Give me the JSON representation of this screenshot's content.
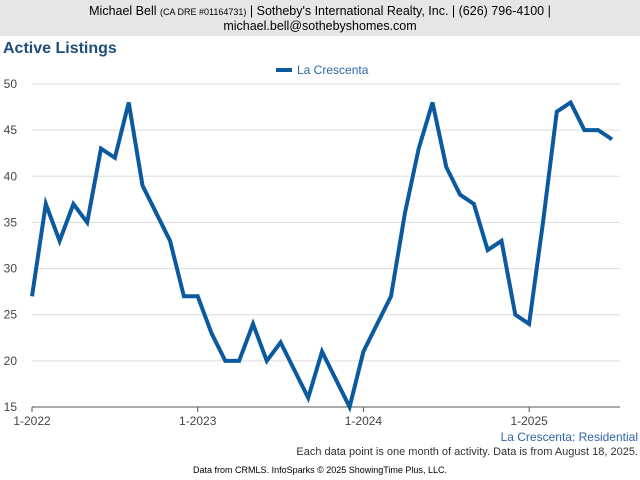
{
  "header": {
    "name": "Michael Bell",
    "license": "(CA DRE #01164731)",
    "company": "| Sotheby's International Realty, Inc. | (626) 796-4100 |",
    "email": "michael.bell@sothebyshomes.com"
  },
  "footer": {
    "series_label": "La Crescenta: Residential",
    "note": "Each data point is one month of activity. Data is from August 18, 2025.",
    "source": "Data from CRMLS. InfoSparks © 2025 ShowingTime Plus, LLC."
  },
  "chart_data": {
    "type": "line",
    "title": "Active Listings",
    "xlabel": "",
    "ylabel": "",
    "ylim": [
      15,
      50
    ],
    "yticks": [
      15,
      20,
      25,
      30,
      35,
      40,
      45,
      50
    ],
    "xticks": [
      "1-2022",
      "1-2023",
      "1-2024",
      "1-2025"
    ],
    "grid": true,
    "legend": "top-center",
    "colors": {
      "line": "#0b5aa0",
      "grid": "#dddddd",
      "axis": "#555555"
    },
    "x": [
      "2022-01",
      "2022-02",
      "2022-03",
      "2022-04",
      "2022-05",
      "2022-06",
      "2022-07",
      "2022-08",
      "2022-09",
      "2022-10",
      "2022-11",
      "2022-12",
      "2023-01",
      "2023-02",
      "2023-03",
      "2023-04",
      "2023-05",
      "2023-06",
      "2023-07",
      "2023-08",
      "2023-09",
      "2023-10",
      "2023-11",
      "2023-12",
      "2024-01",
      "2024-02",
      "2024-03",
      "2024-04",
      "2024-05",
      "2024-06",
      "2024-07",
      "2024-08",
      "2024-09",
      "2024-10",
      "2024-11",
      "2024-12",
      "2025-01",
      "2025-02",
      "2025-03",
      "2025-04",
      "2025-05",
      "2025-06",
      "2025-07"
    ],
    "series": [
      {
        "name": "La Crescenta",
        "values": [
          27,
          37,
          33,
          37,
          35,
          43,
          42,
          48,
          39,
          36,
          33,
          27,
          27,
          23,
          20,
          20,
          24,
          20,
          22,
          19,
          16,
          21,
          18,
          15,
          21,
          24,
          27,
          36,
          43,
          48,
          41,
          38,
          37,
          32,
          33,
          25,
          24,
          35,
          47,
          48,
          45,
          45,
          44
        ]
      }
    ]
  }
}
